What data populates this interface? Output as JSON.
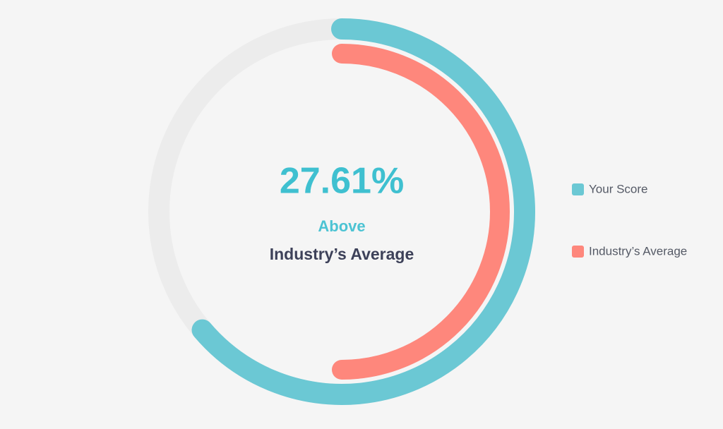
{
  "chart_data": {
    "type": "radial-bar",
    "center_value": "27.61%",
    "center_label": "Above",
    "center_sublabel": "Industry’s Average",
    "rlim": [
      0,
      100
    ],
    "track_color": "#ececec",
    "series": [
      {
        "name": "Your Score",
        "color": "#6bc8d4",
        "values": [
          63.8
        ]
      },
      {
        "name": "Industry’s Average",
        "color": "#fe877c",
        "values": [
          50
        ]
      }
    ]
  }
}
